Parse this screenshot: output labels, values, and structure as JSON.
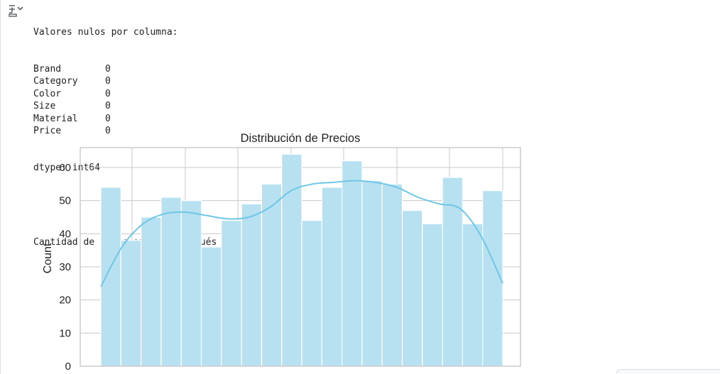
{
  "console": {
    "header": "Valores nulos por columna:",
    "null_counts": [
      {
        "name": "Brand",
        "value": "0"
      },
      {
        "name": "Category",
        "value": "0"
      },
      {
        "name": "Color",
        "value": "0"
      },
      {
        "name": "Size",
        "value": "0"
      },
      {
        "name": "Material",
        "value": "0"
      },
      {
        "name": "Price",
        "value": "0"
      }
    ],
    "dtype": "dtype: int64",
    "duplicates_line": "Cantidad de filas antes y después de eliminar duplicados: 1000 -> 1000"
  },
  "icons": {
    "output_toggle": "output-toggle-icon"
  },
  "chart_data": {
    "type": "bar",
    "title": "Distribución de Precios",
    "xlabel": "",
    "ylabel": "Count",
    "ylim": [
      0,
      66
    ],
    "yticks": [
      0,
      10,
      20,
      30,
      40,
      50,
      60
    ],
    "bins": 20,
    "values": [
      54,
      38,
      45,
      51,
      50,
      36,
      44,
      49,
      55,
      64,
      44,
      54,
      62,
      56,
      55,
      47,
      43,
      57,
      43,
      53
    ],
    "kde": [
      24,
      36,
      43,
      46,
      46.5,
      45.5,
      44.5,
      45,
      48,
      53,
      55,
      55.5,
      56,
      55.5,
      54,
      51,
      49,
      47.5,
      39,
      25
    ],
    "grid": true,
    "colors": {
      "bar_fill": "#b7e0f0",
      "bar_edge": "#ffffff",
      "kde_line": "#6ec7e6",
      "grid": "#c8c8c8",
      "frame": "#c8c8c8",
      "text": "#1f1f1f"
    }
  }
}
